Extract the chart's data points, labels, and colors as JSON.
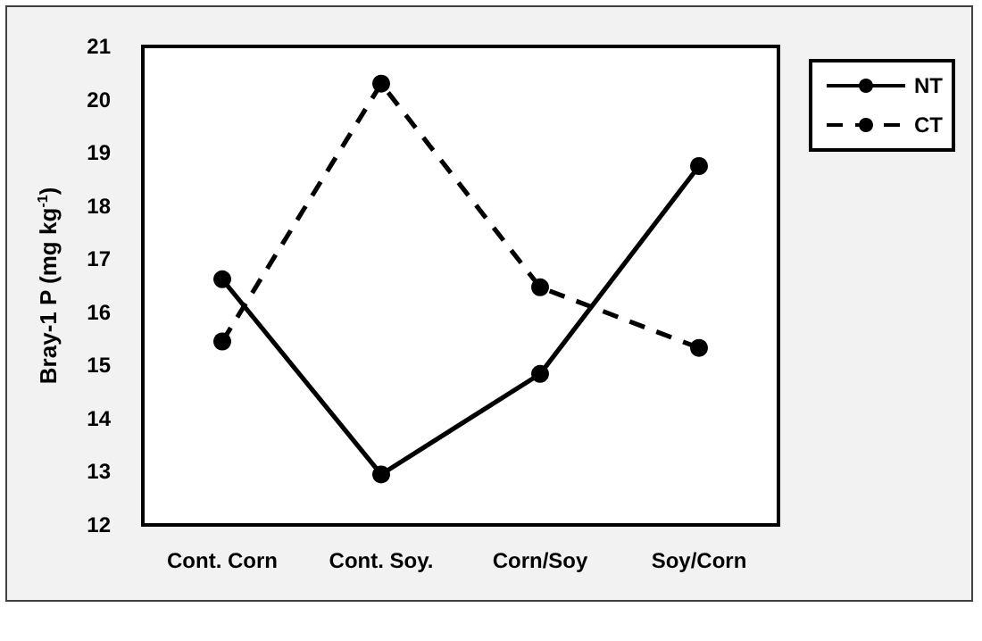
{
  "chart_data": {
    "type": "line",
    "ylabel": "Bray-1 P (mg kg$^{-1}$)",
    "categories": [
      "Cont. Corn",
      "Cont. Soy.",
      "Corn/Soy",
      "Soy/Corn"
    ],
    "series": [
      {
        "name": "NT",
        "color": "#000000",
        "line_style": "solid",
        "values": [
          16.62,
          12.95,
          14.84,
          18.75
        ]
      },
      {
        "name": "CT",
        "color": "#000000",
        "line_style": "dashed",
        "values": [
          15.45,
          20.3,
          16.47,
          15.33
        ]
      }
    ],
    "ylim": [
      12,
      21
    ],
    "yticks": [
      12,
      13,
      14,
      15,
      16,
      17,
      18,
      19,
      20,
      21
    ],
    "grid": false,
    "legend": "top right",
    "marker": "circle"
  }
}
